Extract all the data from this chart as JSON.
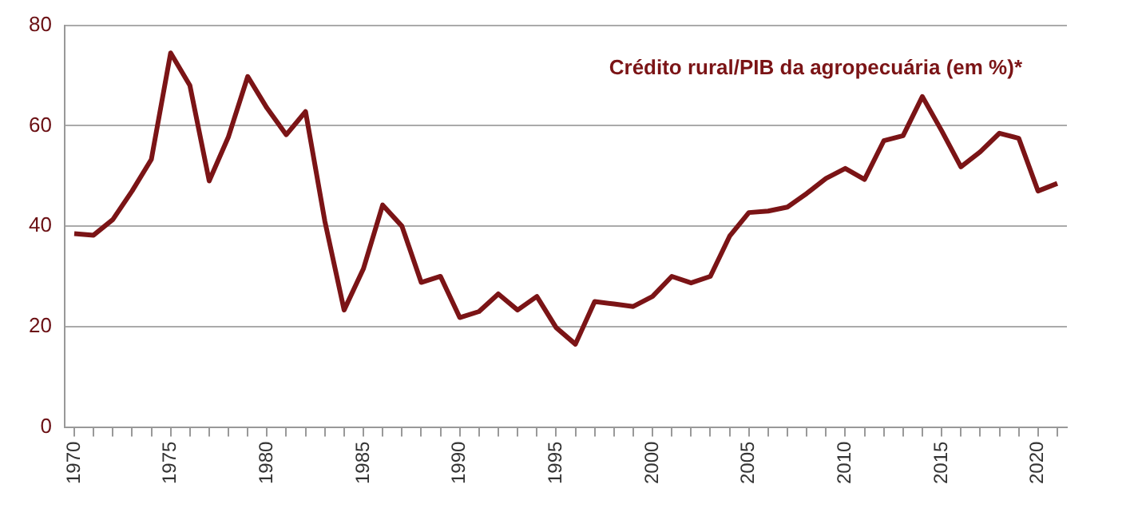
{
  "chart_data": {
    "type": "line",
    "categories": [
      "1970",
      null,
      null,
      null,
      null,
      "1975",
      null,
      null,
      null,
      null,
      "1980",
      null,
      null,
      null,
      null,
      "1985",
      null,
      null,
      null,
      null,
      "1990",
      null,
      null,
      null,
      null,
      "1995",
      null,
      null,
      null,
      null,
      "2000",
      null,
      null,
      null,
      null,
      "2005",
      null,
      null,
      null,
      null,
      "2010",
      null,
      null,
      null,
      null,
      "2015",
      null,
      null,
      null,
      null,
      "2020",
      null
    ],
    "series": [
      {
        "name": "Crédito rural/PIB da agropecuária (em %)*",
        "color": "#7b1416",
        "values": [
          38.5,
          38.2,
          41.3,
          47,
          53.3,
          74.5,
          68,
          49,
          57.8,
          69.8,
          63.5,
          58.2,
          62.8,
          41,
          23.3,
          31.5,
          44.2,
          40,
          28.8,
          30,
          21.8,
          23,
          26.5,
          23.3,
          26,
          19.8,
          16.5,
          25,
          24.5,
          24,
          26,
          30,
          28.7,
          30,
          38,
          42.7,
          43,
          43.8,
          46.5,
          49.5,
          51.5,
          49.3,
          57,
          58,
          65.8,
          59,
          51.8,
          54.8,
          58.5,
          57.5,
          47,
          48.5
        ]
      }
    ],
    "ylim": [
      0,
      80
    ],
    "yticks": [
      0,
      20,
      40,
      60,
      80
    ],
    "grid": "y",
    "marker": "none",
    "line_style": "solid"
  }
}
